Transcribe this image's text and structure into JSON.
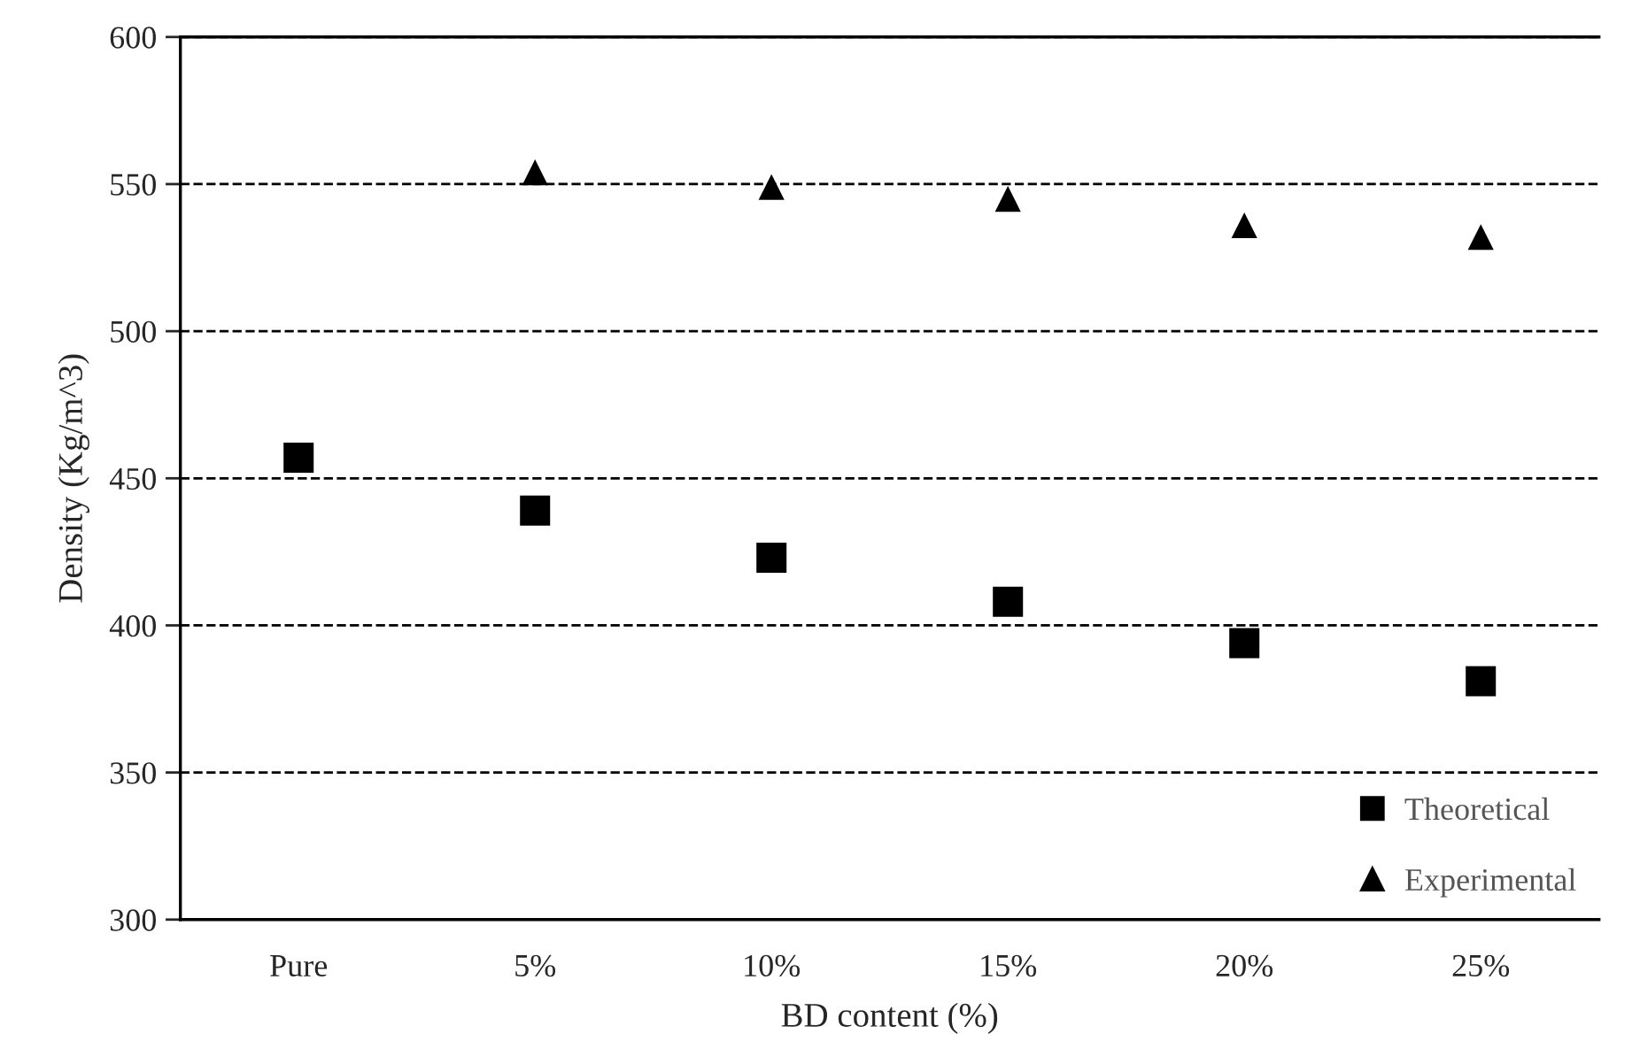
{
  "chart_data": {
    "type": "scatter",
    "xlabel": "BD content (%)",
    "ylabel": "Density (Kg/m^3)",
    "categories": [
      "Pure",
      "5%",
      "10%",
      "15%",
      "20%",
      "25%"
    ],
    "series": [
      {
        "name": "Theoretical",
        "color": "#000000",
        "marker": "square",
        "values": [
          457,
          439,
          423,
          408,
          394,
          381
        ]
      },
      {
        "name": "Experimental",
        "color": "#000000",
        "marker": "triangle",
        "values": [
          null,
          554,
          549,
          545,
          536,
          532
        ]
      }
    ],
    "ylim": [
      300,
      600
    ],
    "yticks": [
      300,
      350,
      400,
      450,
      500,
      550,
      600
    ],
    "grid": "y",
    "line_style": "dashed",
    "legend": "bottom right"
  }
}
